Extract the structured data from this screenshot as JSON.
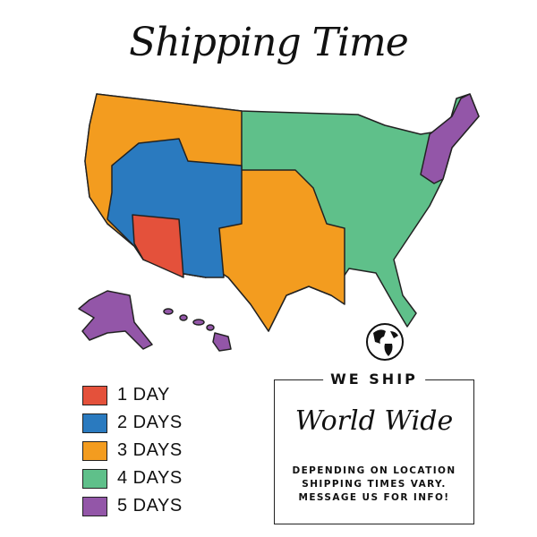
{
  "title": "Shipping Time",
  "colors": {
    "1_day": "#e4513b",
    "2_days": "#2a7abf",
    "3_days": "#f39c1f",
    "4_days": "#5fc08a",
    "5_days": "#9356a8"
  },
  "legend": [
    {
      "label": "1 DAY",
      "color": "#e4513b"
    },
    {
      "label": "2 DAYS",
      "color": "#2a7abf"
    },
    {
      "label": "3 DAYS",
      "color": "#f39c1f"
    },
    {
      "label": "4 DAYS",
      "color": "#5fc08a"
    },
    {
      "label": "5 DAYS",
      "color": "#9356a8"
    }
  ],
  "icon": "globe-icon",
  "info_box": {
    "heading": "WE SHIP",
    "script": "World Wide",
    "lines": [
      "DEPENDING ON LOCATION",
      "SHIPPING TIMES VARY.",
      "MESSAGE US FOR INFO!"
    ]
  }
}
